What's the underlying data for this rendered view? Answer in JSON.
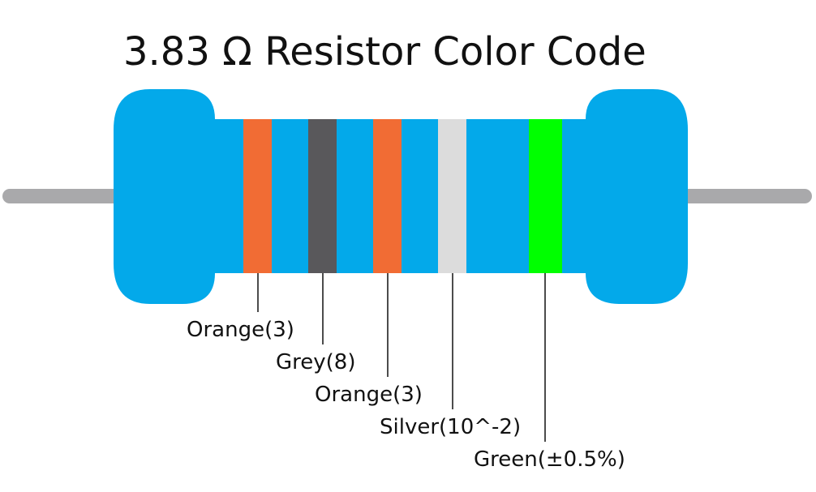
{
  "title": "3.83 Ω Resistor Color Code",
  "bands": [
    {
      "label": "Orange(3)"
    },
    {
      "label": "Grey(8)"
    },
    {
      "label": "Orange(3)"
    },
    {
      "label": "Silver(10^-2)"
    },
    {
      "label": "Green(±0.5%)"
    }
  ]
}
